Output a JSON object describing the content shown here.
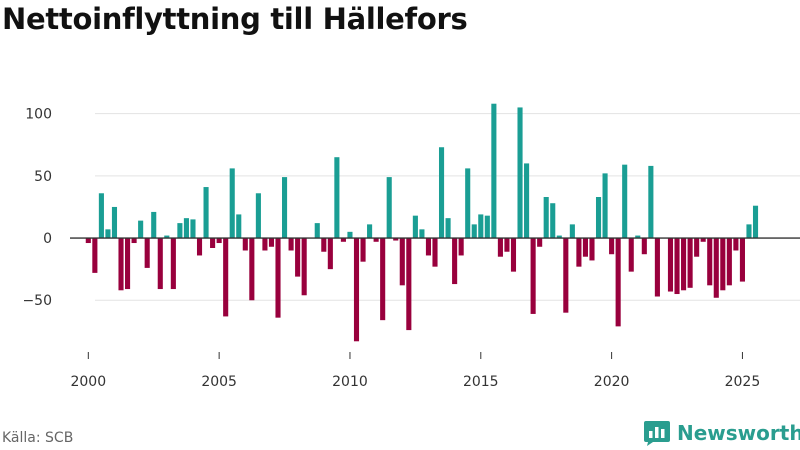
{
  "title": "Nettoinflyttning till Hällefors",
  "source": "Källa: SCB",
  "brand": {
    "name": "Newsworthy",
    "icon": "newsworthy-logo-icon"
  },
  "colors": {
    "positive": "#1a9e94",
    "negative": "#99003d",
    "axis": "#333333",
    "grid": "#e3e3e3",
    "brand": "#2a9d8f"
  },
  "chart_data": {
    "type": "bar",
    "title": "Nettoinflyttning till Hällefors",
    "xlabel": "",
    "ylabel": "",
    "quarter_x_start": 2000.0,
    "quarter_step": 0.25,
    "xlim": [
      1999.3,
      2027.2
    ],
    "ylim": [
      -90,
      115
    ],
    "y_ticks": [
      100,
      50,
      0,
      -50
    ],
    "y_tick_labels": [
      "100",
      "50",
      "0",
      "−50"
    ],
    "x_ticks": [
      2000,
      2005,
      2010,
      2015,
      2020,
      2025
    ],
    "x_tick_labels": [
      "2000",
      "2005",
      "2010",
      "2015",
      "2020",
      "2025"
    ],
    "values": [
      -4,
      -28,
      36,
      7,
      25,
      -42,
      -41,
      -4,
      14,
      -24,
      21,
      -41,
      2,
      -41,
      12,
      16,
      15,
      -14,
      41,
      -8,
      -4,
      -63,
      56,
      19,
      -10,
      -50,
      36,
      -10,
      -7,
      -64,
      49,
      -10,
      -31,
      -46,
      0,
      12,
      -11,
      -25,
      65,
      -3,
      5,
      -83,
      -19,
      11,
      -3,
      -66,
      49,
      -2,
      -38,
      -74,
      18,
      7,
      -14,
      -23,
      73,
      16,
      -37,
      -14,
      56,
      11,
      19,
      18,
      108,
      -15,
      -11,
      -27,
      105,
      60,
      -61,
      -7,
      33,
      28,
      2,
      -60,
      11,
      -23,
      -15,
      -18,
      33,
      52,
      -13,
      -71,
      59,
      -27,
      2,
      -13,
      58,
      -47,
      0,
      -43,
      -45,
      -42,
      -40,
      -15,
      -3,
      -38,
      -48,
      -42,
      -38,
      -10,
      -35,
      11,
      26
    ]
  }
}
